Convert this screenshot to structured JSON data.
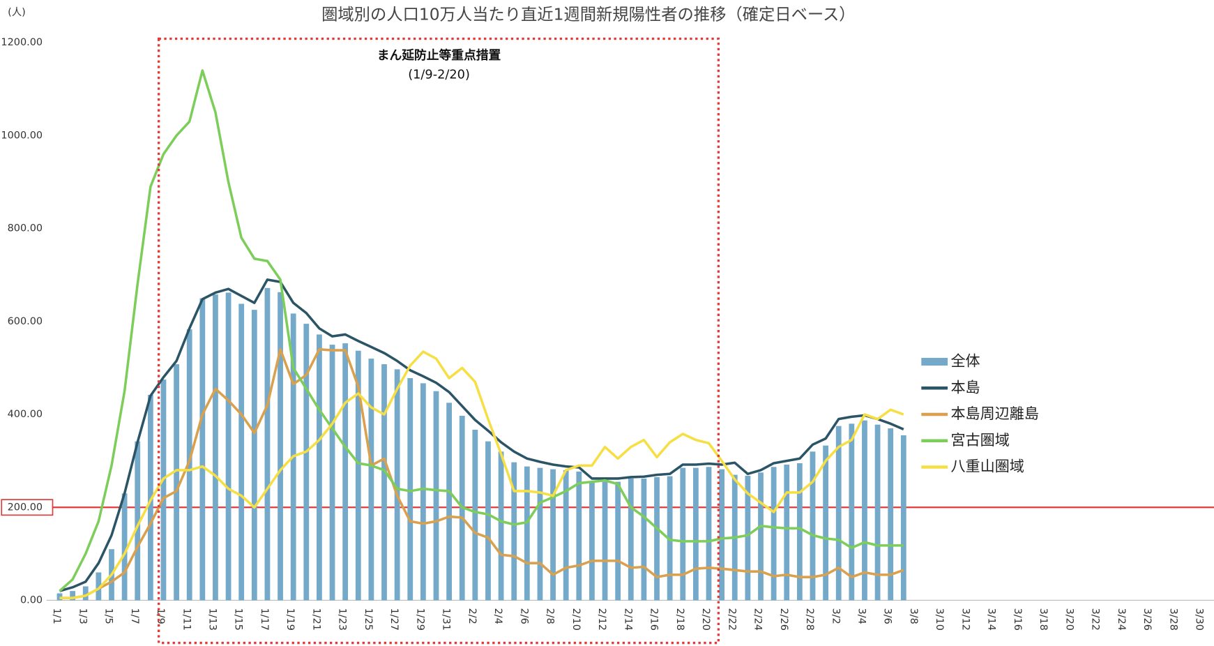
{
  "chart_data": {
    "type": "combo",
    "title": "圏域別の人口10万人当たり直近1週間新規陽性者の推移（確定日ベース）",
    "y_label": "(人)",
    "annotations": [
      "まん延防止等重点措置",
      "(1/9-2/20)"
    ],
    "categories": [
      "1/1",
      null,
      "1/3",
      null,
      "1/5",
      null,
      "1/7",
      null,
      "1/9",
      null,
      "1/11",
      null,
      "1/13",
      null,
      "1/15",
      null,
      "1/17",
      null,
      "1/19",
      null,
      "1/21",
      null,
      "1/23",
      null,
      "1/25",
      null,
      "1/27",
      null,
      "1/29",
      null,
      "1/31",
      null,
      "2/2",
      null,
      "2/4",
      null,
      "2/6",
      null,
      "2/8",
      null,
      "2/10",
      null,
      "2/12",
      null,
      "2/14",
      null,
      "2/16",
      null,
      "2/18",
      null,
      "2/20",
      null,
      "2/22",
      null,
      "2/24",
      null,
      "2/26",
      null,
      "2/28",
      null,
      "3/2",
      null,
      "3/4",
      null,
      "3/6",
      null,
      "3/8",
      null,
      "3/10",
      null,
      "3/12",
      null,
      "3/14",
      null,
      "3/16",
      null,
      "3/18",
      null,
      "3/20",
      null,
      "3/22",
      null,
      "3/24",
      null,
      "3/26",
      null,
      "3/28",
      null,
      "3/30",
      null
    ],
    "ylim": [
      0,
      1200
    ],
    "yticks": [
      {
        "value": 0,
        "label": "0.00"
      },
      {
        "value": 200,
        "label": "200.00"
      },
      {
        "value": 400,
        "label": "400.00"
      },
      {
        "value": 600,
        "label": "600.00"
      },
      {
        "value": 800,
        "label": "800.00"
      },
      {
        "value": 1000,
        "label": "1000.00"
      },
      {
        "value": 1200,
        "label": "1200.00"
      }
    ],
    "reference_line": {
      "value": 200,
      "color": "#e03a3a"
    },
    "legend": "right",
    "series": [
      {
        "name": "全体",
        "type": "bar",
        "color": "#74a9c9",
        "values": [
          15,
          20,
          30,
          60,
          110,
          230,
          342,
          442,
          475,
          508,
          583,
          650,
          658,
          662,
          638,
          625,
          672,
          663,
          617,
          595,
          572,
          550,
          553,
          537,
          520,
          508,
          497,
          478,
          467,
          450,
          425,
          397,
          367,
          342,
          320,
          297,
          288,
          285,
          282,
          280,
          277,
          255,
          255,
          255,
          262,
          262,
          265,
          267,
          285,
          285,
          287,
          282,
          270,
          268,
          275,
          287,
          292,
          295,
          320,
          333,
          375,
          380,
          387,
          378,
          370,
          355,
          null,
          null,
          null,
          null,
          null,
          null,
          null,
          null,
          null,
          null,
          null,
          null,
          null,
          null,
          null,
          null,
          null,
          null,
          null,
          null,
          null,
          null,
          null,
          null
        ]
      },
      {
        "name": "本島",
        "type": "line",
        "color": "#2b5566",
        "values": [
          20,
          28,
          40,
          80,
          140,
          230,
          340,
          440,
          480,
          515,
          585,
          648,
          662,
          670,
          655,
          640,
          690,
          685,
          640,
          618,
          585,
          568,
          572,
          558,
          545,
          532,
          515,
          495,
          482,
          468,
          448,
          418,
          388,
          365,
          340,
          320,
          305,
          298,
          292,
          288,
          286,
          262,
          262,
          262,
          265,
          266,
          270,
          272,
          292,
          292,
          294,
          292,
          296,
          272,
          280,
          295,
          300,
          305,
          335,
          348,
          390,
          395,
          398,
          390,
          380,
          368,
          null,
          null,
          null,
          null,
          null,
          null,
          null,
          null,
          null,
          null,
          null,
          null,
          null,
          null,
          null,
          null,
          null,
          null,
          null,
          null,
          null,
          null,
          null,
          null
        ]
      },
      {
        "name": "本島周辺離島",
        "type": "line",
        "color": "#d9a04e",
        "values": [
          5,
          5,
          10,
          25,
          40,
          60,
          115,
          165,
          220,
          235,
          300,
          400,
          455,
          430,
          400,
          360,
          420,
          540,
          465,
          485,
          540,
          538,
          538,
          460,
          290,
          305,
          225,
          170,
          165,
          170,
          180,
          178,
          145,
          135,
          98,
          95,
          80,
          80,
          55,
          70,
          75,
          85,
          85,
          85,
          70,
          72,
          50,
          55,
          55,
          68,
          70,
          68,
          65,
          62,
          62,
          52,
          55,
          50,
          50,
          55,
          70,
          50,
          60,
          55,
          55,
          65,
          null,
          null,
          null,
          null,
          null,
          null,
          null,
          null,
          null,
          null,
          null,
          null,
          null,
          null,
          null,
          null,
          null,
          null,
          null,
          null,
          null,
          null,
          null,
          null
        ]
      },
      {
        "name": "宮古圏域",
        "type": "line",
        "color": "#7ccd5a",
        "values": [
          20,
          45,
          100,
          170,
          290,
          450,
          680,
          890,
          960,
          1000,
          1030,
          1140,
          1050,
          900,
          780,
          735,
          730,
          690,
          500,
          455,
          410,
          370,
          330,
          295,
          290,
          280,
          240,
          235,
          240,
          237,
          235,
          200,
          190,
          185,
          170,
          163,
          168,
          210,
          222,
          235,
          252,
          255,
          258,
          250,
          200,
          180,
          155,
          130,
          127,
          127,
          127,
          133,
          135,
          140,
          160,
          157,
          155,
          155,
          140,
          133,
          130,
          113,
          125,
          118,
          118,
          118,
          null,
          null,
          null,
          null,
          null,
          null,
          null,
          null,
          null,
          null,
          null,
          null,
          null,
          null,
          null,
          null,
          null,
          null,
          null,
          null,
          null,
          null,
          null,
          null
        ]
      },
      {
        "name": "八重山圏域",
        "type": "line",
        "color": "#f6df45",
        "values": [
          5,
          5,
          10,
          25,
          55,
          100,
          160,
          215,
          262,
          280,
          280,
          288,
          268,
          240,
          225,
          200,
          240,
          280,
          310,
          320,
          345,
          380,
          425,
          445,
          415,
          400,
          455,
          505,
          535,
          520,
          478,
          500,
          470,
          390,
          315,
          235,
          235,
          232,
          225,
          280,
          290,
          290,
          330,
          305,
          330,
          345,
          308,
          340,
          358,
          345,
          338,
          300,
          260,
          230,
          210,
          190,
          232,
          232,
          255,
          300,
          330,
          345,
          400,
          390,
          410,
          400,
          null,
          null,
          null,
          null,
          null,
          null,
          null,
          null,
          null,
          null,
          null,
          null,
          null,
          null,
          null,
          null,
          null,
          null,
          null,
          null,
          null,
          null,
          null,
          null
        ]
      }
    ]
  }
}
